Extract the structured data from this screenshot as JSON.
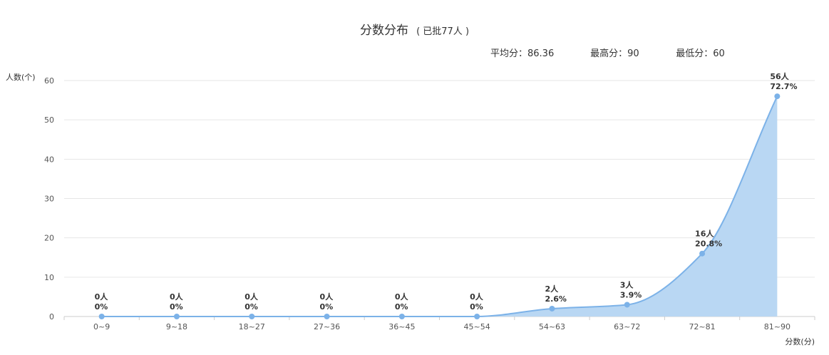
{
  "header": {
    "title": "分数分布",
    "subtitle": "( 已批77人 )"
  },
  "stats": {
    "avg": "平均分：86.36",
    "max": "最高分：90",
    "min": "最低分：60"
  },
  "chart_data": {
    "type": "area",
    "categories": [
      "0~9",
      "9~18",
      "18~27",
      "27~36",
      "36~45",
      "45~54",
      "54~63",
      "63~72",
      "72~81",
      "81~90"
    ],
    "values": [
      0,
      0,
      0,
      0,
      0,
      0,
      2,
      3,
      16,
      56
    ],
    "count_labels": [
      "0人",
      "0人",
      "0人",
      "0人",
      "0人",
      "0人",
      "2人",
      "3人",
      "16人",
      "56人"
    ],
    "percent_labels": [
      "0%",
      "0%",
      "0%",
      "0%",
      "0%",
      "0%",
      "2.6%",
      "3.9%",
      "20.8%",
      "72.7%"
    ],
    "ylabel": "人数(个)",
    "xlabel": "分数(分)",
    "ylim": [
      0,
      60
    ],
    "yticks": [
      0,
      10,
      20,
      30,
      40,
      50,
      60
    ],
    "grid": true,
    "smooth": true,
    "colors": {
      "line": "#7cb2e8",
      "fill": "#b9d7f3",
      "point": "#7cb2e8",
      "grid": "#e6e6e6",
      "axis": "#cccccc"
    }
  }
}
